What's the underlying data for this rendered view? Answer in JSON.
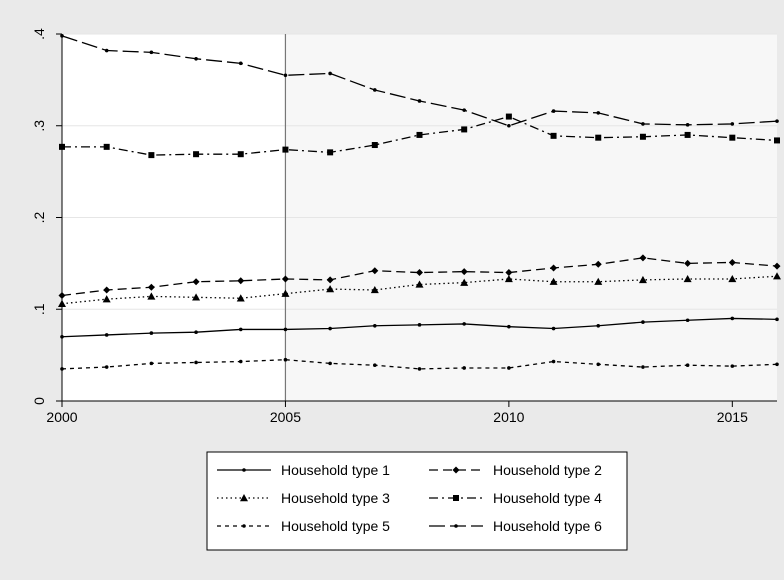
{
  "chart_data": {
    "type": "line",
    "title": "",
    "xlabel": "",
    "ylabel": "",
    "xlim": [
      2000,
      2016
    ],
    "ylim": [
      0,
      0.4
    ],
    "x_ticks": [
      {
        "value": 2000,
        "label": "2000"
      },
      {
        "value": 2005,
        "label": "2005"
      },
      {
        "value": 2010,
        "label": "2010"
      },
      {
        "value": 2015,
        "label": "2015"
      }
    ],
    "y_ticks": [
      {
        "value": 0,
        "label": "0"
      },
      {
        "value": 0.1,
        "label": ".1"
      },
      {
        "value": 0.2,
        "label": ".2"
      },
      {
        "value": 0.3,
        "label": ".3"
      },
      {
        "value": 0.4,
        "label": ".4"
      }
    ],
    "grid": true,
    "reference_line_x": 2005,
    "shade_after_x": 2005,
    "legend_position": "bottom",
    "x": [
      2000,
      2001,
      2002,
      2003,
      2004,
      2005,
      2006,
      2007,
      2008,
      2009,
      2010,
      2011,
      2012,
      2013,
      2014,
      2015,
      2016
    ],
    "series": [
      {
        "name": "Household type 1",
        "line": "solid",
        "marker": "dot",
        "values": [
          0.07,
          0.072,
          0.074,
          0.075,
          0.078,
          0.078,
          0.079,
          0.082,
          0.083,
          0.084,
          0.081,
          0.079,
          0.082,
          0.086,
          0.088,
          0.09,
          0.089
        ]
      },
      {
        "name": "Household type 2",
        "line": "dash",
        "marker": "diamond",
        "values": [
          0.115,
          0.121,
          0.124,
          0.13,
          0.131,
          0.133,
          0.132,
          0.142,
          0.14,
          0.141,
          0.14,
          0.145,
          0.149,
          0.156,
          0.15,
          0.151,
          0.147
        ]
      },
      {
        "name": "Household type 3",
        "line": "dot",
        "marker": "triangle",
        "values": [
          0.106,
          0.111,
          0.114,
          0.113,
          0.112,
          0.117,
          0.122,
          0.121,
          0.127,
          0.129,
          0.133,
          0.13,
          0.13,
          0.132,
          0.133,
          0.133,
          0.136
        ]
      },
      {
        "name": "Household type 4",
        "line": "dashdot",
        "marker": "square",
        "values": [
          0.277,
          0.277,
          0.268,
          0.269,
          0.269,
          0.274,
          0.271,
          0.279,
          0.29,
          0.296,
          0.31,
          0.289,
          0.287,
          0.288,
          0.29,
          0.287,
          0.284
        ]
      },
      {
        "name": "Household type 5",
        "line": "shortdash",
        "marker": "dot",
        "values": [
          0.035,
          0.037,
          0.041,
          0.042,
          0.043,
          0.045,
          0.041,
          0.039,
          0.035,
          0.036,
          0.036,
          0.043,
          0.04,
          0.037,
          0.039,
          0.038,
          0.04
        ]
      },
      {
        "name": "Household type 6",
        "line": "longdash",
        "marker": "dot",
        "values": [
          0.398,
          0.382,
          0.38,
          0.373,
          0.368,
          0.355,
          0.357,
          0.339,
          0.327,
          0.317,
          0.3,
          0.316,
          0.314,
          0.302,
          0.301,
          0.302,
          0.305
        ]
      }
    ],
    "colors": {
      "background": "#eaeaea",
      "plot_left": "#ffffff",
      "plot_right": "#f7f7f7",
      "grid": "#e6e6e6",
      "ink": "#000000",
      "reference_line": "#777777"
    }
  }
}
